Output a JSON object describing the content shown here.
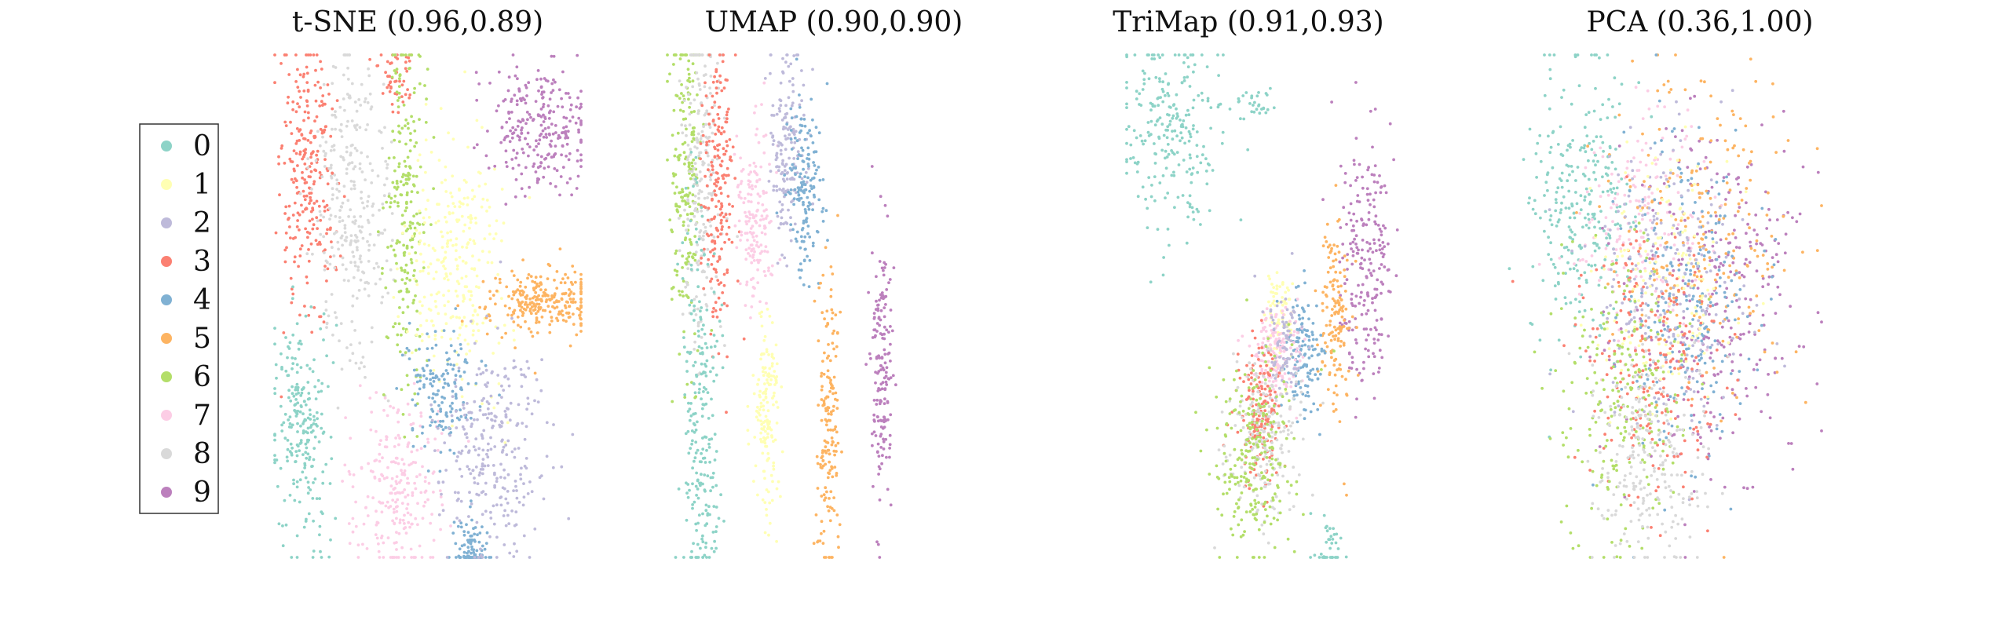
{
  "chart_data": [
    {
      "type": "scatter",
      "title": "t-SNE (0.96,0.89)",
      "clusters": [
        {
          "label": "3",
          "cx": -0.78,
          "cy": 0.48,
          "sx": 0.09,
          "sy": 0.28,
          "n": 260
        },
        {
          "label": "3",
          "cx": -0.22,
          "cy": 0.9,
          "sx": 0.05,
          "sy": 0.07,
          "n": 50
        },
        {
          "label": "8",
          "cx": -0.5,
          "cy": 0.42,
          "sx": 0.13,
          "sy": 0.33,
          "n": 300
        },
        {
          "label": "6",
          "cx": -0.15,
          "cy": 0.35,
          "sx": 0.06,
          "sy": 0.35,
          "n": 220
        },
        {
          "label": "1",
          "cx": 0.2,
          "cy": 0.2,
          "sx": 0.15,
          "sy": 0.26,
          "n": 280
        },
        {
          "label": "9",
          "cx": 0.72,
          "cy": 0.72,
          "sx": 0.17,
          "sy": 0.13,
          "n": 260
        },
        {
          "label": "5",
          "cx": 0.75,
          "cy": 0.02,
          "sx": 0.18,
          "sy": 0.07,
          "n": 260
        },
        {
          "label": "0",
          "cx": -0.82,
          "cy": -0.48,
          "sx": 0.09,
          "sy": 0.22,
          "n": 230
        },
        {
          "label": "7",
          "cx": -0.2,
          "cy": -0.72,
          "sx": 0.14,
          "sy": 0.18,
          "n": 240
        },
        {
          "label": "4",
          "cx": 0.1,
          "cy": -0.35,
          "sx": 0.12,
          "sy": 0.12,
          "n": 150
        },
        {
          "label": "4",
          "cx": 0.28,
          "cy": -0.98,
          "sx": 0.06,
          "sy": 0.07,
          "n": 100
        },
        {
          "label": "2",
          "cx": 0.42,
          "cy": -0.58,
          "sx": 0.18,
          "sy": 0.2,
          "n": 280
        }
      ]
    },
    {
      "type": "scatter",
      "title": "UMAP (0.90,0.90)",
      "clusters": [
        {
          "label": "6",
          "cx": -0.88,
          "cy": 0.56,
          "sx": 0.05,
          "sy": 0.35,
          "n": 200
        },
        {
          "label": "8",
          "cx": -0.78,
          "cy": 0.5,
          "sx": 0.06,
          "sy": 0.35,
          "n": 220
        },
        {
          "label": "3",
          "cx": -0.67,
          "cy": 0.42,
          "sx": 0.05,
          "sy": 0.3,
          "n": 200
        },
        {
          "label": "7",
          "cx": -0.42,
          "cy": 0.35,
          "sx": 0.06,
          "sy": 0.18,
          "n": 160
        },
        {
          "label": "2",
          "cx": -0.22,
          "cy": 0.65,
          "sx": 0.06,
          "sy": 0.2,
          "n": 170
        },
        {
          "label": "4",
          "cx": -0.1,
          "cy": 0.45,
          "sx": 0.06,
          "sy": 0.18,
          "n": 160
        },
        {
          "label": "0",
          "cx": -0.78,
          "cy": -0.42,
          "sx": 0.06,
          "sy": 0.42,
          "n": 230
        },
        {
          "label": "1",
          "cx": -0.35,
          "cy": -0.42,
          "sx": 0.04,
          "sy": 0.2,
          "n": 160
        },
        {
          "label": "5",
          "cx": 0.05,
          "cy": -0.48,
          "sx": 0.04,
          "sy": 0.3,
          "n": 170
        },
        {
          "label": "9",
          "cx": 0.4,
          "cy": -0.22,
          "sx": 0.035,
          "sy": 0.26,
          "n": 170
        }
      ]
    },
    {
      "type": "scatter",
      "title": "TriMap (0.91,0.93)",
      "clusters": [
        {
          "label": "0",
          "cx": -0.72,
          "cy": 0.7,
          "sx": 0.16,
          "sy": 0.2,
          "n": 240
        },
        {
          "label": "0",
          "cx": -0.2,
          "cy": 0.8,
          "sx": 0.07,
          "sy": 0.03,
          "n": 30
        },
        {
          "label": "0",
          "cx": 0.28,
          "cy": -1.0,
          "sx": 0.04,
          "sy": 0.08,
          "n": 40
        },
        {
          "label": "9",
          "cx": 0.52,
          "cy": 0.18,
          "sx": 0.09,
          "sy": 0.26,
          "n": 220
        },
        {
          "label": "5",
          "cx": 0.33,
          "cy": -0.05,
          "sx": 0.05,
          "sy": 0.19,
          "n": 150
        },
        {
          "label": "1",
          "cx": -0.02,
          "cy": -0.02,
          "sx": 0.05,
          "sy": 0.1,
          "n": 80
        },
        {
          "label": "4",
          "cx": 0.12,
          "cy": -0.18,
          "sx": 0.06,
          "sy": 0.14,
          "n": 130
        },
        {
          "label": "7",
          "cx": -0.06,
          "cy": -0.2,
          "sx": 0.08,
          "sy": 0.1,
          "n": 160
        },
        {
          "label": "2",
          "cx": 0.0,
          "cy": -0.15,
          "sx": 0.06,
          "sy": 0.1,
          "n": 90
        },
        {
          "label": "3",
          "cx": -0.15,
          "cy": -0.42,
          "sx": 0.07,
          "sy": 0.14,
          "n": 170
        },
        {
          "label": "8",
          "cx": -0.12,
          "cy": -0.52,
          "sx": 0.12,
          "sy": 0.17,
          "n": 200
        },
        {
          "label": "6",
          "cx": -0.22,
          "cy": -0.6,
          "sx": 0.14,
          "sy": 0.2,
          "n": 240
        }
      ]
    },
    {
      "type": "scatter",
      "title": "PCA (0.36,1.00)",
      "clusters": [
        {
          "label": "0",
          "cx": -0.48,
          "cy": 0.42,
          "sx": 0.15,
          "sy": 0.28,
          "n": 280
        },
        {
          "label": "7",
          "cx": -0.12,
          "cy": 0.32,
          "sx": 0.2,
          "sy": 0.22,
          "n": 170
        },
        {
          "label": "9",
          "cx": 0.38,
          "cy": 0.02,
          "sx": 0.26,
          "sy": 0.35,
          "n": 300
        },
        {
          "label": "5",
          "cx": 0.25,
          "cy": 0.28,
          "sx": 0.26,
          "sy": 0.32,
          "n": 230
        },
        {
          "label": "4",
          "cx": 0.18,
          "cy": 0.05,
          "sx": 0.2,
          "sy": 0.3,
          "n": 230
        },
        {
          "label": "2",
          "cx": 0.05,
          "cy": 0.05,
          "sx": 0.25,
          "sy": 0.3,
          "n": 220
        },
        {
          "label": "1",
          "cx": 0.05,
          "cy": 0.12,
          "sx": 0.22,
          "sy": 0.25,
          "n": 140
        },
        {
          "label": "3",
          "cx": -0.02,
          "cy": -0.22,
          "sx": 0.2,
          "sy": 0.28,
          "n": 230
        },
        {
          "label": "6",
          "cx": -0.22,
          "cy": -0.38,
          "sx": 0.2,
          "sy": 0.28,
          "n": 230
        },
        {
          "label": "8",
          "cx": -0.05,
          "cy": -0.62,
          "sx": 0.17,
          "sy": 0.22,
          "n": 230
        }
      ]
    }
  ],
  "legend": {
    "placement": "left",
    "entries": [
      {
        "label": "0",
        "color": "#8dd3c7"
      },
      {
        "label": "1",
        "color": "#ffffb3"
      },
      {
        "label": "2",
        "color": "#bebada"
      },
      {
        "label": "3",
        "color": "#fb8072"
      },
      {
        "label": "4",
        "color": "#80b1d3"
      },
      {
        "label": "5",
        "color": "#fdb462"
      },
      {
        "label": "6",
        "color": "#b3de69"
      },
      {
        "label": "7",
        "color": "#fccde5"
      },
      {
        "label": "8",
        "color": "#d9d9d9"
      },
      {
        "label": "9",
        "color": "#bc80bd"
      }
    ]
  }
}
